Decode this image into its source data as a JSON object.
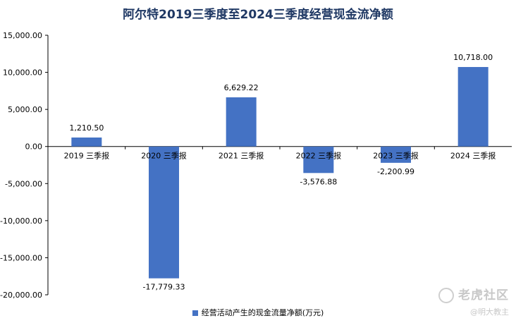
{
  "chart_data": {
    "type": "bar",
    "title": "阿尔特2019三季度至2024三季度经营现金流净额",
    "categories": [
      "2019 三季报",
      "2020 三季报",
      "2021 三季报",
      "2022 三季报",
      "2023 三季报",
      "2024 三季报"
    ],
    "series": [
      {
        "name": "经营活动产生的现金流量净额(万元)",
        "values": [
          1210.5,
          -17779.33,
          6629.22,
          -3576.88,
          -2200.99,
          10718.0
        ]
      }
    ],
    "data_labels": [
      "1,210.50",
      "-17,779.33",
      "6,629.22",
      "-3,576.88",
      "-2,200.99",
      "10,718.00"
    ],
    "yticks": [
      15000,
      10000,
      5000,
      0,
      -5000,
      -10000,
      -15000,
      -20000
    ],
    "ytick_labels": [
      "15,000.00",
      "10,000.00",
      "5,000.00",
      "0.00",
      "-5,000.00",
      "-10,000.00",
      "-15,000.00",
      "-20,000.00"
    ],
    "ylim": [
      -20000,
      15000
    ],
    "grid": false,
    "legend_position": "bottom",
    "bar_color": "#4472c4"
  },
  "watermark": {
    "main": "老虎社区",
    "sub": "@明大教主"
  }
}
